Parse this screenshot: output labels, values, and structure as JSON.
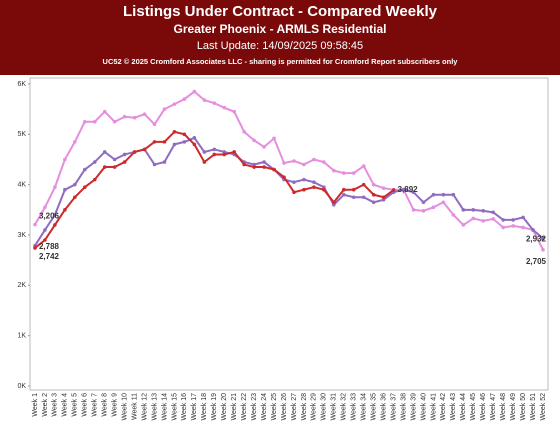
{
  "chart_data": {
    "type": "line",
    "title": "Listings Under Contract - Compared Weekly",
    "subtitle": "Greater Phoenix - ARMLS Residential",
    "update": "Last Update: 14/09/2025 09:58:45",
    "copyright": "UC52 © 2025 Cromford Associates LLC - sharing is permitted for Cromford Report subscribers only",
    "categories": [
      "Week 1",
      "Week 2",
      "Week 3",
      "Week 4",
      "Week 5",
      "Week 6",
      "Week 7",
      "Week 8",
      "Week 9",
      "Week 10",
      "Week 11",
      "Week 12",
      "Week 13",
      "Week 14",
      "Week 15",
      "Week 16",
      "Week 17",
      "Week 18",
      "Week 19",
      "Week 20",
      "Week 21",
      "Week 22",
      "Week 23",
      "Week 24",
      "Week 25",
      "Week 26",
      "Week 27",
      "Week 28",
      "Week 29",
      "Week 30",
      "Week 31",
      "Week 32",
      "Week 33",
      "Week 34",
      "Week 35",
      "Week 36",
      "Week 37",
      "Week 38",
      "Week 39",
      "Week 40",
      "Week 41",
      "Week 42",
      "Week 43",
      "Week 44",
      "Week 45",
      "Week 46",
      "Week 47",
      "Week 48",
      "Week 49",
      "Week 50",
      "Week 51",
      "Week 52"
    ],
    "series": [
      {
        "color": "#e58ee0",
        "values": [
          3206,
          3550,
          3950,
          4500,
          4850,
          5250,
          5250,
          5450,
          5250,
          5350,
          5330,
          5400,
          5200,
          5500,
          5600,
          5700,
          5850,
          5680,
          5620,
          5530,
          5450,
          5050,
          4880,
          4750,
          4920,
          4430,
          4470,
          4400,
          4500,
          4450,
          4280,
          4230,
          4230,
          4370,
          4000,
          3930,
          3900,
          3900,
          3500,
          3480,
          3550,
          3650,
          3400,
          3200,
          3330,
          3280,
          3320,
          3150,
          3180,
          3150,
          3100,
          2705
        ],
        "value_labels": [
          "3,206",
          null,
          null,
          null,
          null,
          null,
          null,
          null,
          null,
          null,
          null,
          null,
          null,
          null,
          null,
          null,
          null,
          null,
          null,
          null,
          null,
          null,
          null,
          null,
          null,
          null,
          null,
          null,
          null,
          null,
          null,
          null,
          null,
          null,
          null,
          null,
          null,
          null,
          null,
          null,
          null,
          null,
          null,
          null,
          null,
          null,
          null,
          null,
          null,
          null,
          null,
          "2,705"
        ]
      },
      {
        "color": "#8f6cc2",
        "values": [
          2788,
          3100,
          3400,
          3900,
          4000,
          4300,
          4450,
          4650,
          4500,
          4600,
          4650,
          4700,
          4400,
          4450,
          4800,
          4850,
          4930,
          4650,
          4700,
          4650,
          4600,
          4450,
          4400,
          4450,
          4300,
          4100,
          4050,
          4100,
          4050,
          3950,
          3600,
          3800,
          3750,
          3750,
          3650,
          3700,
          3850,
          3900,
          3850,
          3650,
          3800,
          3800,
          3800,
          3500,
          3500,
          3480,
          3450,
          3300,
          3300,
          3350,
          3100,
          2932
        ],
        "value_labels": [
          "2,788",
          null,
          null,
          null,
          null,
          null,
          null,
          null,
          null,
          null,
          null,
          null,
          null,
          null,
          null,
          null,
          null,
          null,
          null,
          null,
          null,
          null,
          null,
          null,
          null,
          null,
          null,
          null,
          null,
          null,
          null,
          null,
          null,
          null,
          null,
          null,
          null,
          null,
          null,
          null,
          null,
          null,
          null,
          null,
          null,
          null,
          null,
          null,
          null,
          null,
          null,
          "2,932"
        ]
      },
      {
        "color": "#cc2b2b",
        "values": [
          2742,
          2900,
          3200,
          3500,
          3750,
          3950,
          4100,
          4350,
          4350,
          4450,
          4650,
          4700,
          4850,
          4850,
          5050,
          5000,
          4800,
          4450,
          4600,
          4600,
          4650,
          4400,
          4350,
          4350,
          4300,
          4150,
          3850,
          3900,
          3950,
          3900,
          3650,
          3900,
          3900,
          4000,
          3800,
          3750,
          3892,
          null,
          null,
          null,
          null,
          null,
          null,
          null,
          null,
          null,
          null,
          null,
          null,
          null,
          null,
          null
        ],
        "value_labels": [
          "2,742",
          null,
          null,
          null,
          null,
          null,
          null,
          null,
          null,
          null,
          null,
          null,
          null,
          null,
          null,
          null,
          null,
          null,
          null,
          null,
          null,
          null,
          null,
          null,
          null,
          null,
          null,
          null,
          null,
          null,
          null,
          null,
          null,
          null,
          null,
          null,
          "3,892",
          null,
          null,
          null,
          null,
          null,
          null,
          null,
          null,
          null,
          null,
          null,
          null,
          null,
          null,
          null
        ]
      }
    ],
    "ylim": [
      0,
      6000
    ],
    "yticks": [
      {
        "value": 0,
        "label": "0K"
      },
      {
        "value": 1000,
        "label": "1K"
      },
      {
        "value": 2000,
        "label": "2K"
      },
      {
        "value": 3000,
        "label": "3K"
      },
      {
        "value": 4000,
        "label": "4K"
      },
      {
        "value": 5000,
        "label": "5K"
      },
      {
        "value": 6000,
        "label": "6K"
      }
    ],
    "grid": false
  }
}
